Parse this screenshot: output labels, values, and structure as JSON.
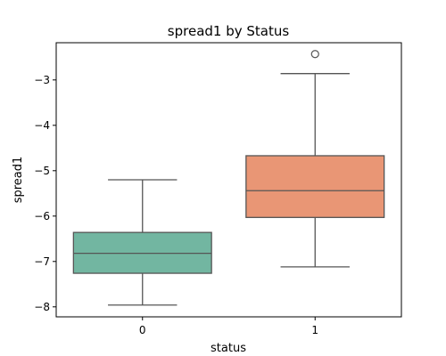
{
  "chart_data": {
    "type": "box",
    "title": "spread1 by Status",
    "xlabel": "status",
    "ylabel": "spread1",
    "categories": [
      "0",
      "1"
    ],
    "ylim": [
      -8.22,
      -2.18
    ],
    "yticks": [
      -8,
      -7,
      -6,
      -5,
      -4,
      -3
    ],
    "ytick_labels": [
      "−8",
      "−7",
      "−6",
      "−5",
      "−4",
      "−3"
    ],
    "grid": false,
    "boxes": [
      {
        "category": "0",
        "whisker_low": -7.96,
        "q1": -7.26,
        "median": -6.82,
        "q3": -6.36,
        "whisker_high": -5.2,
        "outliers": [],
        "color": "#72b6a1"
      },
      {
        "category": "1",
        "whisker_low": -7.12,
        "q1": -6.03,
        "median": -5.44,
        "q3": -4.67,
        "whisker_high": -2.86,
        "outliers": [
          -2.43
        ],
        "color": "#e99675"
      }
    ]
  }
}
